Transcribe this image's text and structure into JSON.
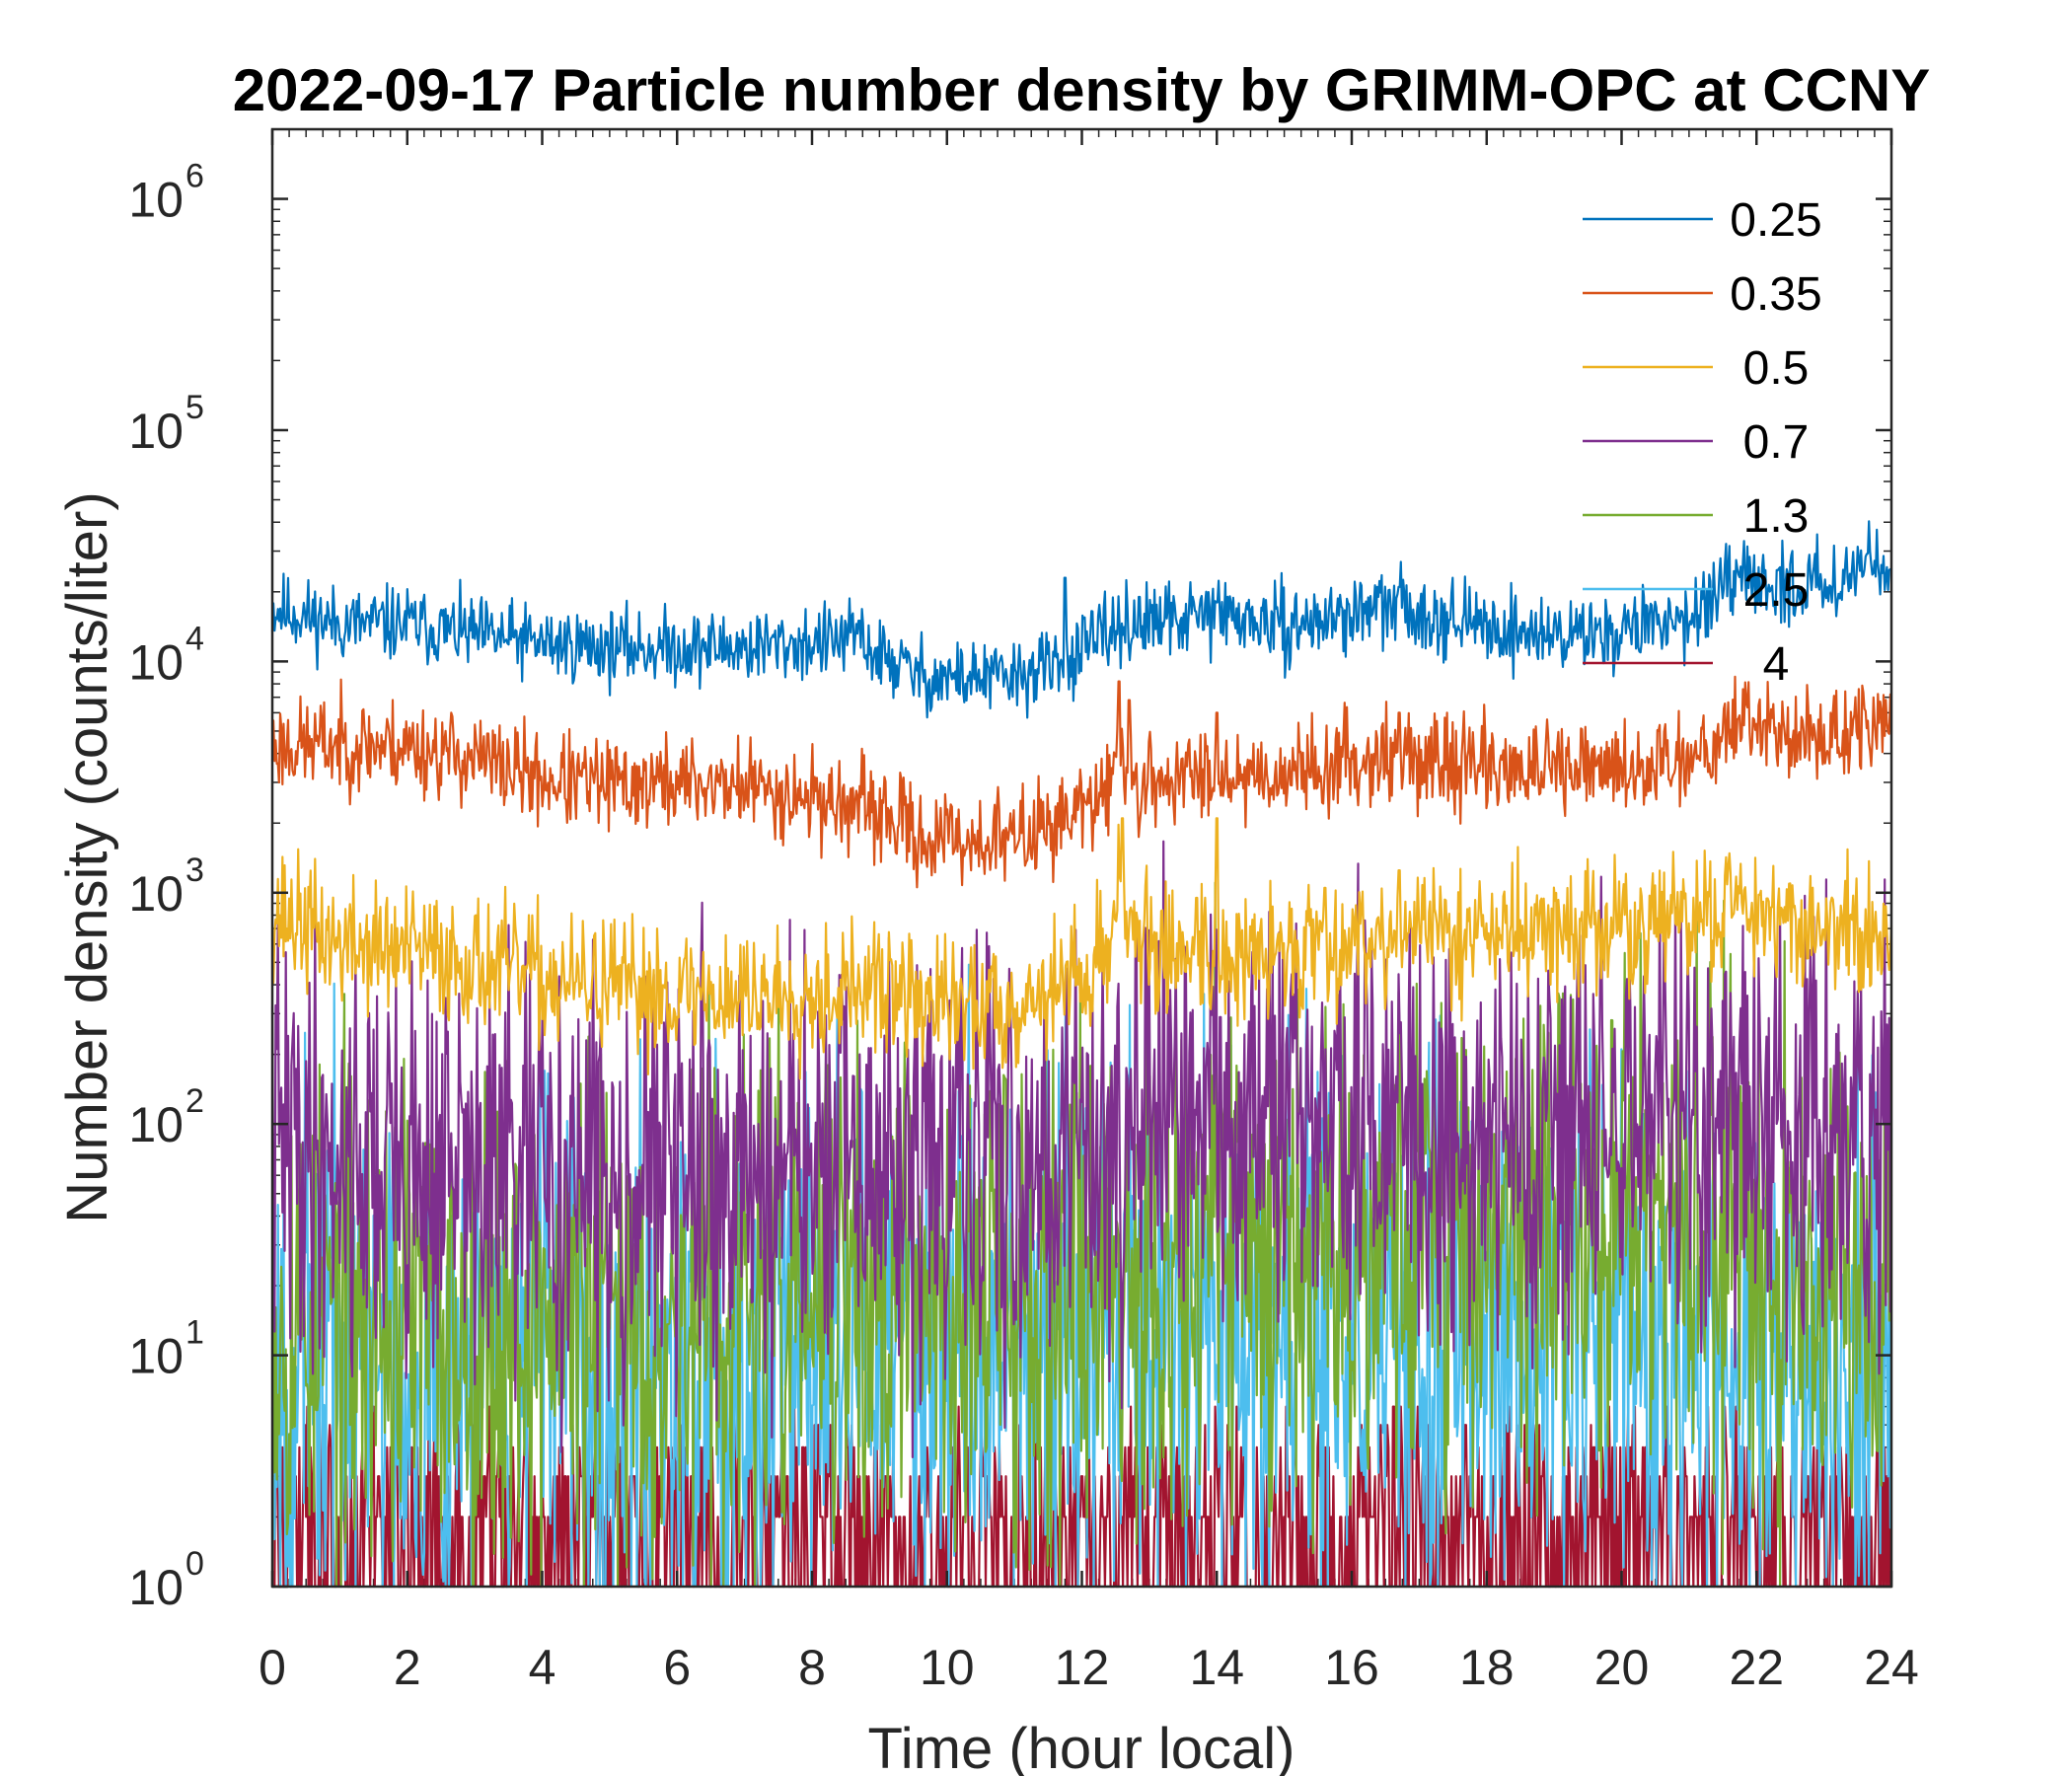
{
  "chart_data": {
    "type": "line",
    "title": "2022-09-17 Particle number density by GRIMM-OPC at CCNY",
    "xlabel": "Time (hour local)",
    "ylabel": "Number density (counts/liter)",
    "xlim": [
      0,
      24
    ],
    "ylim": [
      1,
      2000000
    ],
    "yscale": "log",
    "xticks": [
      0,
      2,
      4,
      6,
      8,
      10,
      12,
      14,
      16,
      18,
      20,
      22,
      24
    ],
    "yticks": [
      {
        "value": 1,
        "base": "10",
        "exp": "0"
      },
      {
        "value": 10,
        "base": "10",
        "exp": "1"
      },
      {
        "value": 100,
        "base": "10",
        "exp": "2"
      },
      {
        "value": 1000,
        "base": "10",
        "exp": "3"
      },
      {
        "value": 10000,
        "base": "10",
        "exp": "4"
      },
      {
        "value": 100000,
        "base": "10",
        "exp": "5"
      },
      {
        "value": 1000000,
        "base": "10",
        "exp": "6"
      }
    ],
    "legend_position": "top-right",
    "series": [
      {
        "name": "0.25",
        "color": "#0072BD",
        "noise": 0.08,
        "seed": 11,
        "points": [
          [
            0,
            17000
          ],
          [
            1,
            14500
          ],
          [
            2,
            14500
          ],
          [
            3,
            13000
          ],
          [
            4,
            12000
          ],
          [
            5,
            11500
          ],
          [
            6,
            11500
          ],
          [
            7,
            11500
          ],
          [
            8,
            12000
          ],
          [
            8.7,
            12500
          ],
          [
            9,
            10500
          ],
          [
            9.7,
            8500
          ],
          [
            10,
            8500
          ],
          [
            11,
            8500
          ],
          [
            11.5,
            9500
          ],
          [
            11.75,
            9500
          ],
          [
            12,
            11000
          ],
          [
            12.5,
            14000
          ],
          [
            13,
            14500
          ],
          [
            14,
            16000
          ],
          [
            15,
            14000
          ],
          [
            16,
            16000
          ],
          [
            16.5,
            17000
          ],
          [
            17,
            16500
          ],
          [
            18,
            14000
          ],
          [
            19,
            13000
          ],
          [
            20,
            13500
          ],
          [
            21,
            16000
          ],
          [
            21.8,
            22000
          ],
          [
            22.5,
            21000
          ],
          [
            23,
            22000
          ],
          [
            24,
            29000
          ]
        ],
        "spikes": [
          [
            8.7,
            15000
          ],
          [
            11.75,
            23000
          ],
          [
            12.85,
            19000
          ],
          [
            14,
            18000
          ],
          [
            16.7,
            21000
          ],
          [
            21.8,
            27000
          ]
        ]
      },
      {
        "name": "0.35",
        "color": "#D95319",
        "noise": 0.1,
        "seed": 23,
        "points": [
          [
            0,
            4300
          ],
          [
            1,
            4400
          ],
          [
            2,
            4300
          ],
          [
            3,
            3800
          ],
          [
            4,
            3100
          ],
          [
            5,
            2900
          ],
          [
            6,
            3000
          ],
          [
            7,
            2900
          ],
          [
            8,
            2600
          ],
          [
            9,
            2200
          ],
          [
            9.7,
            1700
          ],
          [
            10,
            1700
          ],
          [
            11,
            1700
          ],
          [
            11.5,
            2000
          ],
          [
            12,
            2300
          ],
          [
            12.4,
            2600
          ],
          [
            12.5,
            4500
          ],
          [
            12.7,
            3500
          ],
          [
            12.8,
            2700
          ],
          [
            13,
            3000
          ],
          [
            14,
            3300
          ],
          [
            15,
            3300
          ],
          [
            16,
            3700
          ],
          [
            16.5,
            4000
          ],
          [
            17,
            3700
          ],
          [
            18,
            3600
          ],
          [
            19,
            3300
          ],
          [
            20,
            3400
          ],
          [
            21,
            3900
          ],
          [
            21.8,
            5800
          ],
          [
            22.5,
            4700
          ],
          [
            23,
            4700
          ],
          [
            24,
            5400
          ]
        ],
        "spikes": [
          [
            12.55,
            8200
          ],
          [
            12.7,
            6800
          ],
          [
            14,
            6000
          ],
          [
            16.7,
            6000
          ],
          [
            21.85,
            6600
          ]
        ]
      },
      {
        "name": "0.5",
        "color": "#EDB120",
        "noise": 0.14,
        "seed": 37,
        "points": [
          [
            0,
            850
          ],
          [
            1,
            600
          ],
          [
            2,
            560
          ],
          [
            3,
            500
          ],
          [
            4,
            420
          ],
          [
            5,
            380
          ],
          [
            6,
            370
          ],
          [
            7,
            360
          ],
          [
            8,
            380
          ],
          [
            9,
            380
          ],
          [
            10,
            320
          ],
          [
            11,
            330
          ],
          [
            11.5,
            380
          ],
          [
            12,
            450
          ],
          [
            12.4,
            550
          ],
          [
            12.55,
            1400
          ],
          [
            12.75,
            700
          ],
          [
            13,
            550
          ],
          [
            14,
            560
          ],
          [
            14.3,
            480
          ],
          [
            15,
            570
          ],
          [
            16,
            640
          ],
          [
            17,
            680
          ],
          [
            18,
            680
          ],
          [
            19,
            680
          ],
          [
            20,
            700
          ],
          [
            21,
            760
          ],
          [
            21.8,
            950
          ],
          [
            22.5,
            780
          ],
          [
            23,
            680
          ],
          [
            24,
            640
          ]
        ],
        "spikes": [
          [
            3.8,
            800
          ],
          [
            4.9,
            760
          ],
          [
            5.7,
            700
          ],
          [
            12.6,
            2100
          ],
          [
            14,
            2100
          ],
          [
            13.7,
            950
          ],
          [
            15.6,
            1050
          ],
          [
            16.7,
            1250
          ]
        ]
      },
      {
        "name": "0.7",
        "color": "#7E2F8E",
        "noise": 0.45,
        "seed": 41,
        "points": [
          [
            0,
            85
          ],
          [
            2,
            65
          ],
          [
            4,
            55
          ],
          [
            6,
            60
          ],
          [
            8,
            60
          ],
          [
            10,
            60
          ],
          [
            11,
            70
          ],
          [
            12,
            85
          ],
          [
            13,
            95
          ],
          [
            14,
            100
          ],
          [
            16,
            100
          ],
          [
            18,
            95
          ],
          [
            20,
            105
          ],
          [
            22,
            100
          ],
          [
            24,
            90
          ]
        ],
        "spikes": [
          [
            14.05,
            290
          ]
        ]
      },
      {
        "name": "1.3",
        "color": "#77AC30",
        "noise": 0.55,
        "seed": 53,
        "points": [
          [
            0,
            16
          ],
          [
            2,
            15
          ],
          [
            4,
            14
          ],
          [
            6,
            15
          ],
          [
            8,
            17
          ],
          [
            10,
            18
          ],
          [
            12,
            25
          ],
          [
            14,
            32
          ],
          [
            16,
            35
          ],
          [
            18,
            38
          ],
          [
            20,
            38
          ],
          [
            22,
            32
          ],
          [
            24,
            27
          ]
        ],
        "spikes": [
          [
            14.05,
            130
          ]
        ]
      },
      {
        "name": "2.5",
        "color": "#4DBEEE",
        "noise": 0.6,
        "seed": 67,
        "points": [
          [
            0,
            10
          ],
          [
            2,
            10
          ],
          [
            4,
            10
          ],
          [
            6,
            11
          ],
          [
            8,
            12
          ],
          [
            10,
            12
          ],
          [
            12,
            13
          ],
          [
            14,
            13
          ],
          [
            16,
            12
          ],
          [
            18,
            12
          ],
          [
            20,
            12
          ],
          [
            22,
            11
          ],
          [
            24,
            11
          ]
        ],
        "spikes": []
      },
      {
        "name": "4",
        "color": "#A2142F",
        "noise": 0.9,
        "seed": 79,
        "points": [
          [
            0,
            1.6
          ],
          [
            6,
            1.6
          ],
          [
            12,
            2
          ],
          [
            18,
            1.8
          ],
          [
            24,
            1.6
          ]
        ],
        "spikes": []
      }
    ]
  }
}
